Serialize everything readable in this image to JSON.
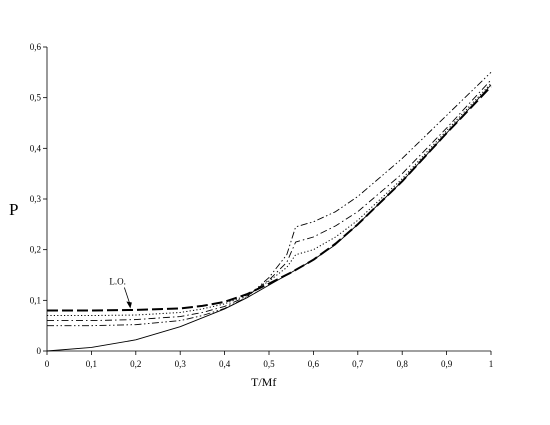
{
  "chart_data": {
    "type": "line",
    "title": "",
    "xlabel": "T/Mf",
    "ylabel": "P",
    "xlim": [
      0,
      1
    ],
    "ylim": [
      0,
      0.6
    ],
    "grid": false,
    "x_ticks": [
      "0",
      "0,1",
      "0,2",
      "0,3",
      "0,4",
      "0,5",
      "0,6",
      "0,7",
      "0,8",
      "0,9",
      "1"
    ],
    "y_ticks": [
      "0",
      "0,1",
      "0,2",
      "0,3",
      "0,4",
      "0,5",
      "0,6"
    ],
    "annotations": [
      {
        "text": "L.O.",
        "x": 0.19,
        "y": 0.08
      }
    ],
    "series": [
      {
        "style": "solid",
        "x": [
          0,
          0.1,
          0.2,
          0.3,
          0.4,
          0.45,
          0.5,
          0.55,
          0.6,
          0.65,
          0.7,
          0.8,
          0.9,
          1.0
        ],
        "y": [
          0.0,
          0.007,
          0.022,
          0.048,
          0.083,
          0.105,
          0.13,
          0.155,
          0.18,
          0.21,
          0.25,
          0.335,
          0.43,
          0.525
        ]
      },
      {
        "style": "long-dash",
        "x": [
          0,
          0.1,
          0.2,
          0.3,
          0.35,
          0.4,
          0.45,
          0.5,
          0.55,
          0.6,
          0.65,
          0.7,
          0.8,
          0.9,
          1.0
        ],
        "y": [
          0.08,
          0.08,
          0.081,
          0.084,
          0.089,
          0.097,
          0.112,
          0.133,
          0.155,
          0.18,
          0.212,
          0.25,
          0.335,
          0.43,
          0.522
        ]
      },
      {
        "style": "dotted",
        "x": [
          0,
          0.1,
          0.2,
          0.3,
          0.35,
          0.4,
          0.45,
          0.5,
          0.54,
          0.56,
          0.6,
          0.65,
          0.7,
          0.8,
          0.9,
          1.0
        ],
        "y": [
          0.07,
          0.07,
          0.071,
          0.076,
          0.083,
          0.093,
          0.11,
          0.138,
          0.165,
          0.19,
          0.2,
          0.225,
          0.258,
          0.34,
          0.435,
          0.528
        ]
      },
      {
        "style": "dash-dot",
        "x": [
          0,
          0.1,
          0.2,
          0.3,
          0.35,
          0.4,
          0.45,
          0.5,
          0.54,
          0.56,
          0.6,
          0.65,
          0.7,
          0.8,
          0.9,
          1.0
        ],
        "y": [
          0.06,
          0.06,
          0.062,
          0.068,
          0.076,
          0.088,
          0.108,
          0.14,
          0.175,
          0.215,
          0.225,
          0.247,
          0.275,
          0.35,
          0.44,
          0.535
        ]
      },
      {
        "style": "dash-dot-dot",
        "x": [
          0,
          0.1,
          0.2,
          0.3,
          0.35,
          0.4,
          0.45,
          0.5,
          0.54,
          0.56,
          0.6,
          0.65,
          0.7,
          0.8,
          0.9,
          1.0
        ],
        "y": [
          0.05,
          0.05,
          0.052,
          0.06,
          0.07,
          0.084,
          0.106,
          0.145,
          0.19,
          0.245,
          0.255,
          0.275,
          0.305,
          0.38,
          0.465,
          0.55
        ]
      }
    ]
  }
}
